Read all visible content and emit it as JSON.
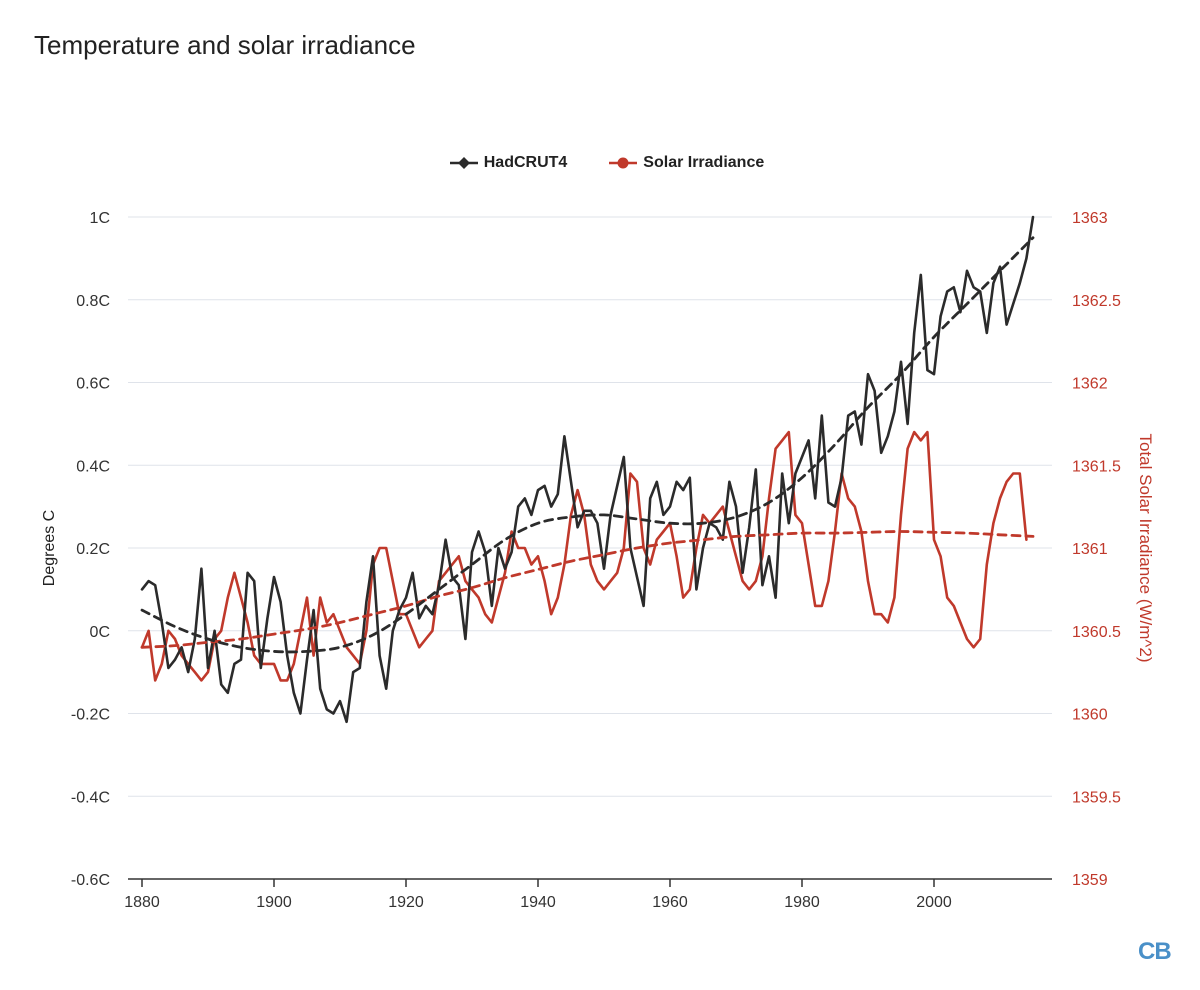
{
  "title": "Temperature and solar irradiance",
  "logo_text": "CB",
  "colors": {
    "hadcrut": "#2b2b2b",
    "solar": "#c0392b",
    "grid": "#dfe3ea",
    "axis": "#333333"
  },
  "chart_data": {
    "type": "line",
    "title": "Temperature and solar irradiance",
    "xlabel": "",
    "ylabel": "Degrees C",
    "y2label": "Total Solar Irradiance (W/m^2)",
    "xlim": [
      1880,
      2016
    ],
    "ylim": [
      -0.6,
      1.0
    ],
    "y2lim": [
      1359,
      1363
    ],
    "x_ticks": [
      1880,
      1900,
      1920,
      1940,
      1960,
      1980,
      2000
    ],
    "y_ticks": [
      -0.6,
      -0.4,
      -0.2,
      0,
      0.2,
      0.4,
      0.6,
      0.8,
      1.0
    ],
    "y_tick_labels": [
      "-0.6C",
      "-0.4C",
      "-0.2C",
      "0C",
      "0.2C",
      "0.4C",
      "0.6C",
      "0.8C",
      "1C"
    ],
    "y2_ticks": [
      1359,
      1359.5,
      1360,
      1360.5,
      1361,
      1361.5,
      1362,
      1362.5,
      1363
    ],
    "y2_tick_labels": [
      "1359",
      "1359.5",
      "1360",
      "1360.5",
      "1361",
      "1361.5",
      "1362",
      "1362.5",
      "1363"
    ],
    "grid": true,
    "legend_position": "top-center",
    "series": [
      {
        "name": "HadCRUT4",
        "axis": "left",
        "x_start": 1880,
        "values": [
          0.1,
          0.12,
          0.11,
          0.02,
          -0.09,
          -0.07,
          -0.04,
          -0.1,
          -0.02,
          0.15,
          -0.09,
          0.0,
          -0.13,
          -0.15,
          -0.08,
          -0.07,
          0.14,
          0.12,
          -0.09,
          0.03,
          0.13,
          0.07,
          -0.06,
          -0.15,
          -0.2,
          -0.07,
          0.05,
          -0.14,
          -0.19,
          -0.2,
          -0.17,
          -0.22,
          -0.1,
          -0.09,
          0.07,
          0.18,
          -0.06,
          -0.14,
          0.0,
          0.05,
          0.08,
          0.14,
          0.03,
          0.06,
          0.04,
          0.11,
          0.22,
          0.13,
          0.11,
          -0.02,
          0.19,
          0.24,
          0.19,
          0.06,
          0.2,
          0.15,
          0.19,
          0.3,
          0.32,
          0.28,
          0.34,
          0.35,
          0.3,
          0.33,
          0.47,
          0.36,
          0.25,
          0.29,
          0.29,
          0.26,
          0.15,
          0.28,
          0.35,
          0.42,
          0.2,
          0.13,
          0.06,
          0.32,
          0.36,
          0.28,
          0.3,
          0.36,
          0.34,
          0.37,
          0.1,
          0.2,
          0.26,
          0.25,
          0.22,
          0.36,
          0.3,
          0.14,
          0.25,
          0.39,
          0.11,
          0.18,
          0.08,
          0.38,
          0.26,
          0.38,
          0.42,
          0.46,
          0.32,
          0.52,
          0.31,
          0.3,
          0.37,
          0.52,
          0.53,
          0.45,
          0.62,
          0.58,
          0.43,
          0.47,
          0.53,
          0.65,
          0.5,
          0.72,
          0.86,
          0.63,
          0.62,
          0.76,
          0.82,
          0.83,
          0.77,
          0.87,
          0.83,
          0.82,
          0.72,
          0.84,
          0.88,
          0.74,
          0.79,
          0.84,
          0.9,
          1.0
        ]
      },
      {
        "name": "HadCRUT4 trend",
        "axis": "left",
        "x": [
          1880,
          1885,
          1890,
          1895,
          1900,
          1905,
          1910,
          1915,
          1920,
          1925,
          1930,
          1935,
          1940,
          1945,
          1950,
          1955,
          1960,
          1965,
          1970,
          1975,
          1980,
          1985,
          1990,
          1995,
          2000,
          2005,
          2010,
          2015
        ],
        "values": [
          0.05,
          0.01,
          -0.02,
          -0.04,
          -0.05,
          -0.05,
          -0.04,
          -0.01,
          0.04,
          0.1,
          0.16,
          0.22,
          0.26,
          0.275,
          0.28,
          0.27,
          0.26,
          0.26,
          0.275,
          0.31,
          0.37,
          0.45,
          0.54,
          0.62,
          0.71,
          0.79,
          0.87,
          0.95
        ]
      },
      {
        "name": "Solar Irradiance",
        "axis": "right",
        "x_start": 1880,
        "values": [
          1360.4,
          1360.5,
          1360.2,
          1360.3,
          1360.5,
          1360.45,
          1360.35,
          1360.3,
          1360.25,
          1360.2,
          1360.25,
          1360.45,
          1360.5,
          1360.7,
          1360.85,
          1360.7,
          1360.55,
          1360.35,
          1360.3,
          1360.3,
          1360.3,
          1360.2,
          1360.2,
          1360.3,
          1360.5,
          1360.7,
          1360.35,
          1360.7,
          1360.55,
          1360.6,
          1360.5,
          1360.4,
          1360.35,
          1360.3,
          1360.5,
          1360.9,
          1361.0,
          1361.0,
          1360.8,
          1360.6,
          1360.6,
          1360.5,
          1360.4,
          1360.45,
          1360.5,
          1360.8,
          1360.85,
          1360.9,
          1360.95,
          1360.8,
          1360.75,
          1360.7,
          1360.6,
          1360.55,
          1360.7,
          1360.85,
          1361.1,
          1361.0,
          1361.0,
          1360.9,
          1360.95,
          1360.8,
          1360.6,
          1360.7,
          1360.9,
          1361.2,
          1361.35,
          1361.2,
          1360.9,
          1360.8,
          1360.75,
          1360.8,
          1360.85,
          1361.0,
          1361.45,
          1361.4,
          1361.0,
          1360.9,
          1361.05,
          1361.1,
          1361.15,
          1360.95,
          1360.7,
          1360.75,
          1361.0,
          1361.2,
          1361.15,
          1361.2,
          1361.25,
          1361.1,
          1360.95,
          1360.8,
          1360.75,
          1360.8,
          1360.95,
          1361.3,
          1361.6,
          1361.65,
          1361.7,
          1361.2,
          1361.15,
          1360.9,
          1360.65,
          1360.65,
          1360.8,
          1361.1,
          1361.45,
          1361.3,
          1361.25,
          1361.1,
          1360.8,
          1360.6,
          1360.6,
          1360.55,
          1360.7,
          1361.2,
          1361.6,
          1361.7,
          1361.65,
          1361.7,
          1361.05,
          1360.95,
          1360.7,
          1360.65,
          1360.55,
          1360.45,
          1360.4,
          1360.45,
          1360.9,
          1361.15,
          1361.3,
          1361.4,
          1361.45,
          1361.45,
          1361.05
        ]
      },
      {
        "name": "Solar Irradiance trend",
        "axis": "right",
        "x": [
          1880,
          1885,
          1890,
          1895,
          1900,
          1905,
          1910,
          1915,
          1920,
          1925,
          1930,
          1935,
          1940,
          1945,
          1950,
          1955,
          1960,
          1965,
          1970,
          1975,
          1980,
          1985,
          1990,
          1995,
          2000,
          2005,
          2010,
          2015
        ],
        "values": [
          1360.4,
          1360.41,
          1360.43,
          1360.45,
          1360.48,
          1360.51,
          1360.55,
          1360.6,
          1360.65,
          1360.71,
          1360.76,
          1360.82,
          1360.87,
          1360.92,
          1360.96,
          1361.0,
          1361.03,
          1361.05,
          1361.07,
          1361.08,
          1361.09,
          1361.09,
          1361.095,
          1361.1,
          1361.095,
          1361.09,
          1361.08,
          1361.07
        ]
      }
    ]
  }
}
